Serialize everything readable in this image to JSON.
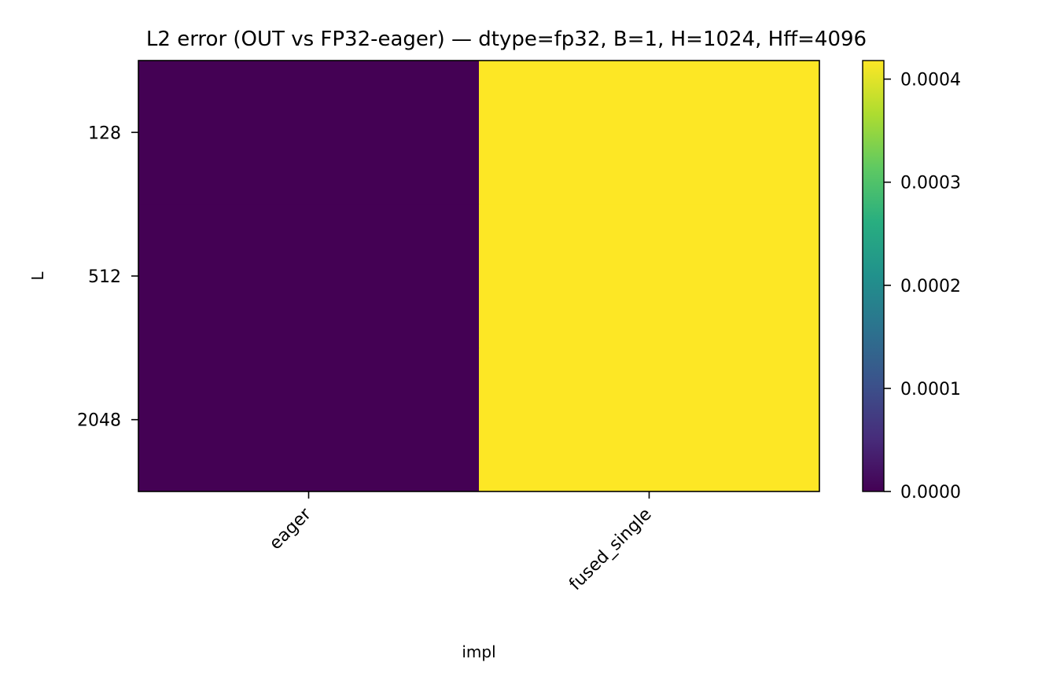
{
  "chart_data": {
    "type": "heatmap",
    "title": "L2 error (OUT vs FP32-eager) — dtype=fp32, B=1, H=1024, Hff=4096",
    "xlabel": "impl",
    "ylabel": "L",
    "x_categories": [
      "eager",
      "fused_single"
    ],
    "y_categories": [
      "128",
      "512",
      "2048"
    ],
    "values": [
      [
        0.0,
        0.000418
      ],
      [
        0.0,
        0.000418
      ],
      [
        0.0,
        0.000418
      ]
    ],
    "colormap": "viridis",
    "colorbar": {
      "range": [
        0.0,
        0.000418
      ],
      "ticks": [
        0.0,
        0.0001,
        0.0002,
        0.0003,
        0.0004
      ],
      "tick_labels": [
        "0.0000",
        "0.0001",
        "0.0002",
        "0.0003",
        "0.0004"
      ]
    },
    "grid": false,
    "x_tick_rotation": "45° counter-clockwise, right-aligned"
  }
}
